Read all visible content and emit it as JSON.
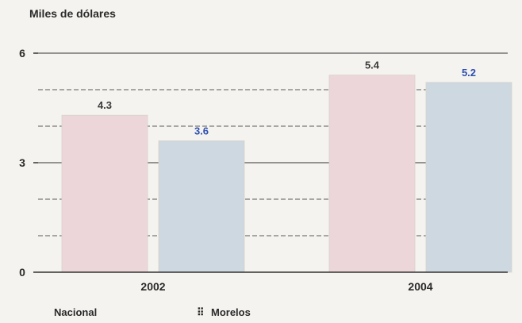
{
  "chart_data": {
    "type": "bar",
    "title": "",
    "ylabel": "Miles de dólares",
    "xlabel": "",
    "categories": [
      "2002",
      "2004"
    ],
    "yticks": [
      0,
      3,
      6
    ],
    "ylim": [
      0,
      6.4
    ],
    "grid": true,
    "legend_position": "bottom-left",
    "series": [
      {
        "name": "Nacional",
        "values": [
          4.3,
          5.4
        ],
        "labels": [
          "4.3",
          "5.4"
        ],
        "color": "#ecd6da",
        "label_color": "#3a3a3a"
      },
      {
        "name": "Morelos",
        "values": [
          3.6,
          5.2
        ],
        "labels": [
          "3.6",
          "5.2"
        ],
        "color": "#cdd8e0",
        "label_color": "#2e4fb0"
      }
    ],
    "legend": [
      {
        "name": "Nacional",
        "marker": ""
      },
      {
        "name": "Morelos",
        "marker": "⠿"
      }
    ]
  }
}
